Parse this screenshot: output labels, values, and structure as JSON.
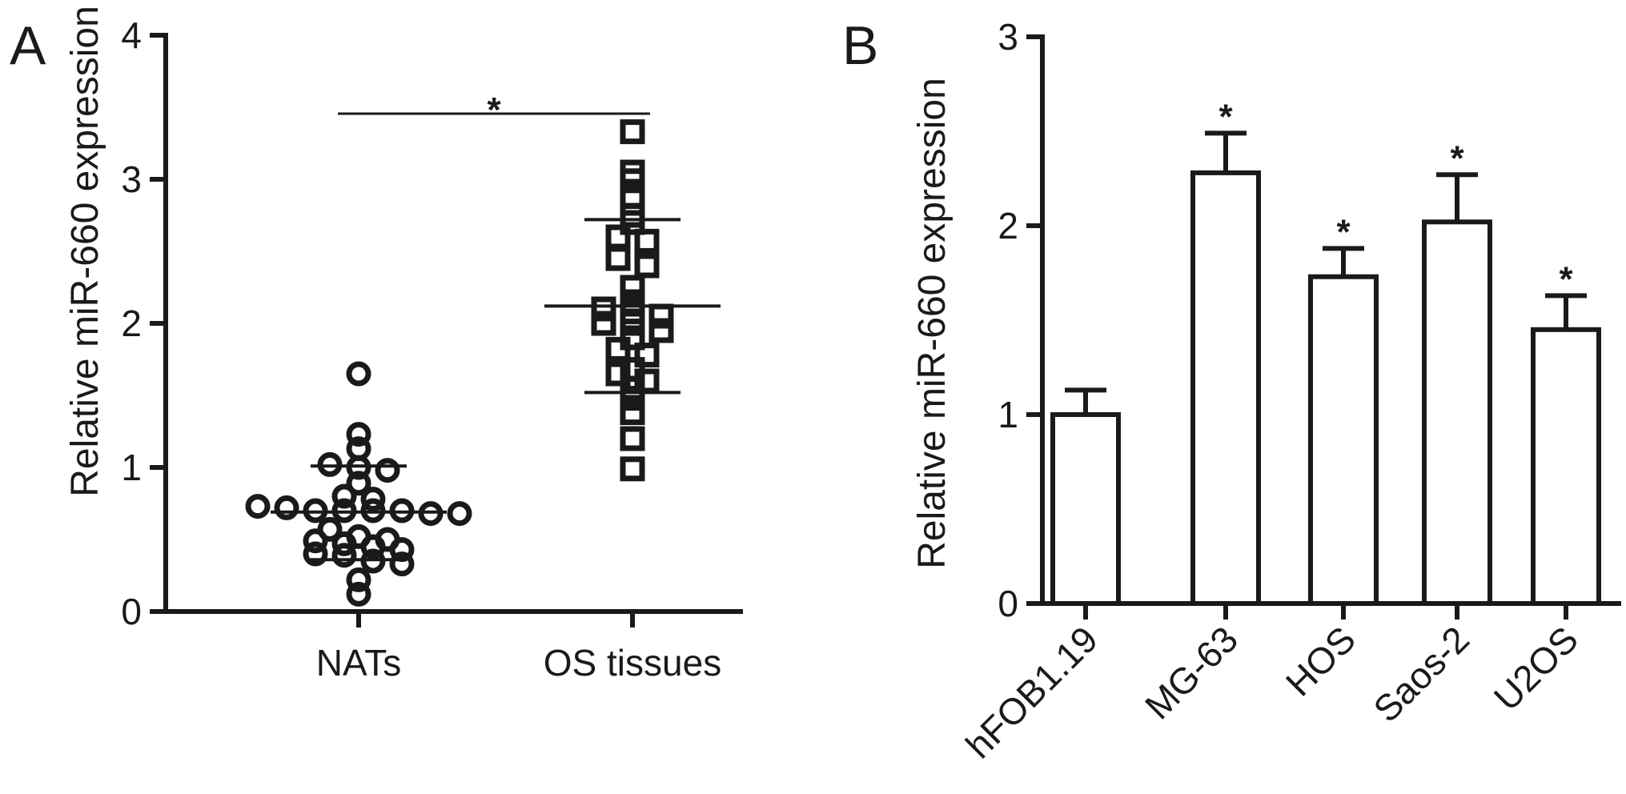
{
  "chart_data": [
    {
      "panel": "A",
      "type": "scatter",
      "ylabel": "Relative miR-660 expression",
      "ylim": [
        0,
        4
      ],
      "yticks": [
        "0",
        "1",
        "2",
        "3",
        "4"
      ],
      "categories": [
        "NATs",
        "OS tissues"
      ],
      "series": [
        {
          "category": "NATs",
          "marker": "circle",
          "values": [
            1.65,
            1.23,
            1.13,
            1.02,
            1.0,
            0.98,
            0.89,
            0.8,
            0.78,
            0.73,
            0.72,
            0.7,
            0.7,
            0.7,
            0.7,
            0.68,
            0.68,
            0.57,
            0.52,
            0.5,
            0.49,
            0.47,
            0.45,
            0.43,
            0.4,
            0.39,
            0.35,
            0.33,
            0.22,
            0.12
          ],
          "mean": 0.69,
          "sd_upper": 1.01,
          "sd_lower": 0.36
        },
        {
          "category": "OS tissues",
          "marker": "square",
          "values": [
            3.33,
            3.05,
            2.99,
            2.88,
            2.75,
            2.7,
            2.6,
            2.57,
            2.45,
            2.4,
            2.25,
            2.15,
            2.1,
            2.08,
            2.05,
            2.0,
            2.0,
            1.95,
            1.9,
            1.82,
            1.78,
            1.68,
            1.65,
            1.6,
            1.55,
            1.48,
            1.38,
            1.2,
            0.99
          ],
          "mean": 2.12,
          "sd_upper": 2.72,
          "sd_lower": 1.52
        }
      ],
      "significance": "*"
    },
    {
      "panel": "B",
      "type": "bar",
      "ylabel": "Relative miR-660 expression",
      "ylim": [
        0,
        3
      ],
      "yticks": [
        "0",
        "1",
        "2",
        "3"
      ],
      "categories": [
        "hFOB1.19",
        "MG-63",
        "HOS",
        "Saos-2",
        "U2OS"
      ],
      "values": [
        1.0,
        2.28,
        1.73,
        2.02,
        1.45
      ],
      "errors": [
        0.13,
        0.21,
        0.15,
        0.25,
        0.18
      ],
      "significance": [
        "",
        "*",
        "*",
        "*",
        "*"
      ]
    }
  ]
}
